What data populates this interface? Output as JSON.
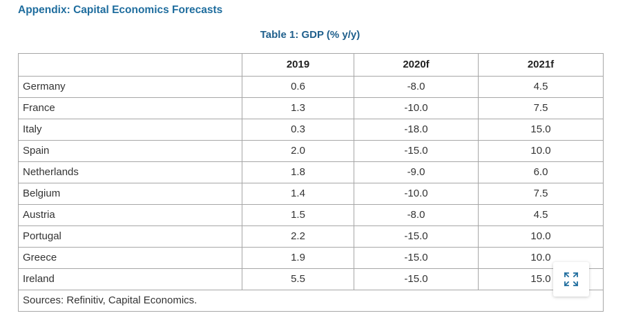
{
  "appendix_title": "Appendix: Capital Economics Forecasts",
  "table": {
    "caption": "Table 1: GDP (% y/y)",
    "headers": [
      "",
      "2019",
      "2020f",
      "2021f"
    ],
    "rows": [
      {
        "country": "Germany",
        "y2019": "0.6",
        "y2020f": "-8.0",
        "y2021f": "4.5"
      },
      {
        "country": "France",
        "y2019": "1.3",
        "y2020f": "-10.0",
        "y2021f": "7.5"
      },
      {
        "country": "Italy",
        "y2019": "0.3",
        "y2020f": "-18.0",
        "y2021f": "15.0"
      },
      {
        "country": "Spain",
        "y2019": "2.0",
        "y2020f": "-15.0",
        "y2021f": "10.0"
      },
      {
        "country": "Netherlands",
        "y2019": "1.8",
        "y2020f": "-9.0",
        "y2021f": "6.0"
      },
      {
        "country": "Belgium",
        "y2019": "1.4",
        "y2020f": "-10.0",
        "y2021f": "7.5"
      },
      {
        "country": "Austria",
        "y2019": "1.5",
        "y2020f": "-8.0",
        "y2021f": "4.5"
      },
      {
        "country": "Portugal",
        "y2019": "2.2",
        "y2020f": "-15.0",
        "y2021f": "10.0"
      },
      {
        "country": "Greece",
        "y2019": "1.9",
        "y2020f": "-15.0",
        "y2021f": "10.0"
      },
      {
        "country": "Ireland",
        "y2019": "5.5",
        "y2020f": "-15.0",
        "y2021f": "15.0"
      }
    ],
    "sources": "Sources: Refinitiv, Capital Economics."
  },
  "expand_button": {
    "icon": "expand-icon"
  },
  "colors": {
    "title": "#1f6d9e",
    "caption": "#1f5f8c",
    "border": "#a6a6a6",
    "icon": "#1f6d9e"
  }
}
